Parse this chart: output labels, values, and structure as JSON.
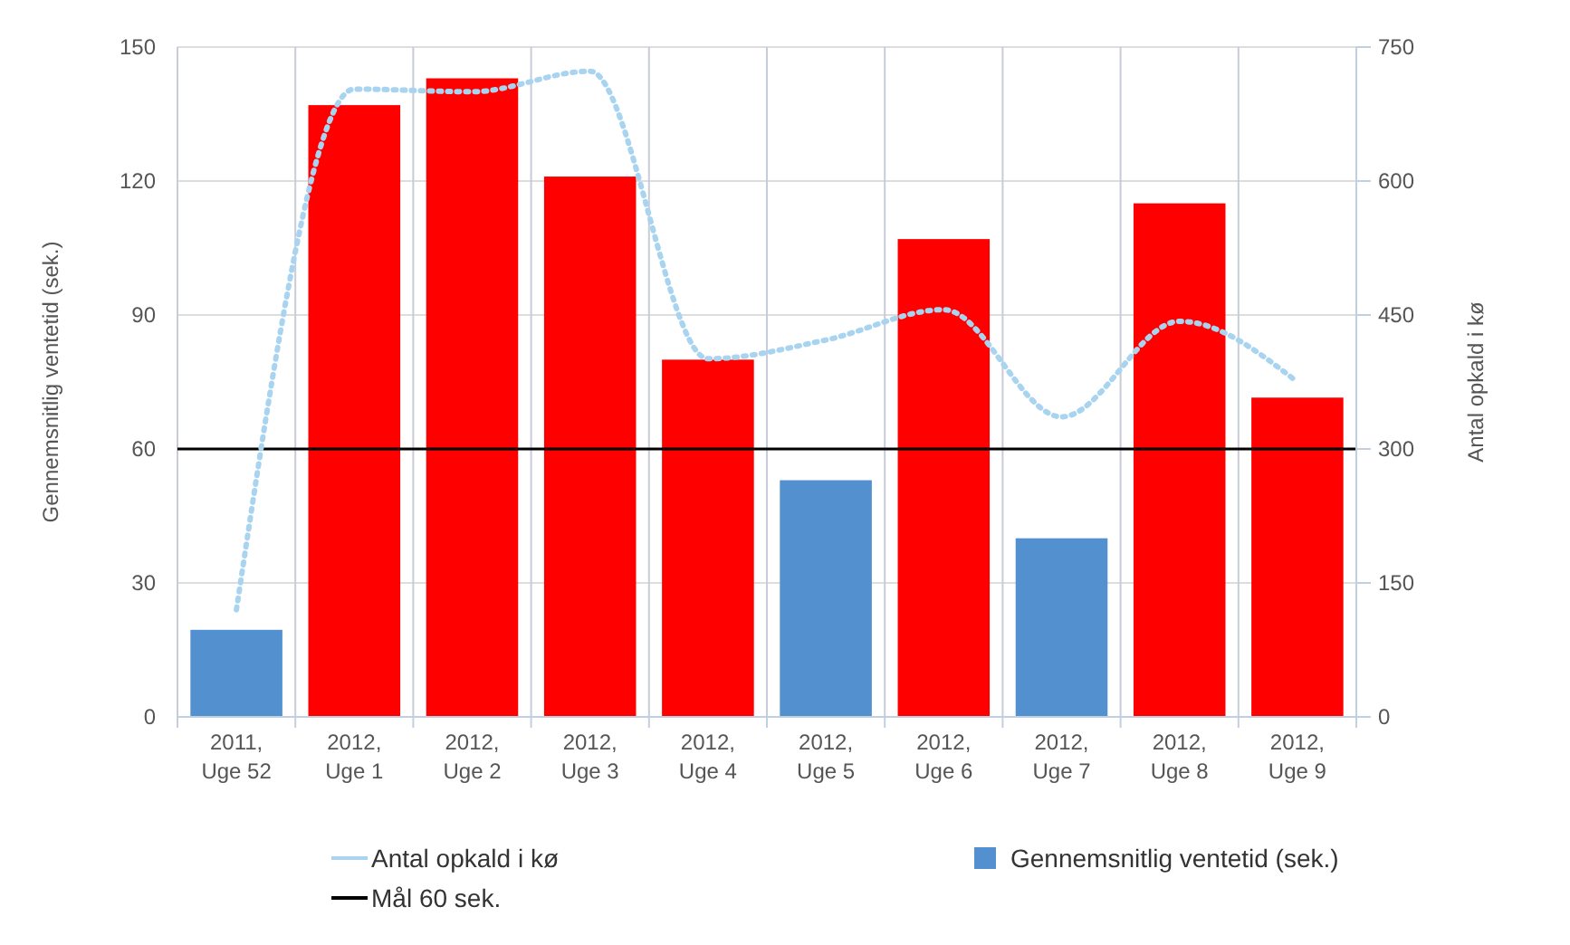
{
  "chart_data": {
    "type": "bar",
    "ylabel": "Gennemsnitlig ventetid (sek.)",
    "y2label": "Antal opkald i kø",
    "categories": [
      "2011, Uge 52",
      "2012, Uge 1",
      "2012, Uge 2",
      "2012, Uge 3",
      "2012, Uge 4",
      "2012, Uge 5",
      "2012, Uge 6",
      "2012, Uge 7",
      "2012, Uge 8",
      "2012, Uge 9"
    ],
    "series": [
      {
        "name": "Gennemsnitlig ventetid (sek.)",
        "color": "#5290d0",
        "colors": [
          "#5290d0",
          "#ff0000",
          "#ff0000",
          "#ff0000",
          "#ff0000",
          "#5290d0",
          "#ff0000",
          "#5290d0",
          "#ff0000",
          "#ff0000"
        ],
        "values": [
          19.5,
          137,
          143,
          121,
          80,
          53,
          107,
          40,
          115,
          71.5
        ]
      },
      {
        "name": "Antal opkald i kø",
        "type": "line",
        "axis": "y2",
        "color": "#a8d4f0",
        "line_style": "dotted",
        "values": [
          120,
          703,
          700,
          723,
          401,
          422,
          456,
          336,
          443,
          375
        ]
      }
    ],
    "ylim": [
      0,
      150
    ],
    "yticks": [
      0,
      30,
      60,
      90,
      120,
      150
    ],
    "y2lim": [
      0,
      750
    ],
    "y2ticks": [
      0,
      150,
      300,
      450,
      600,
      750
    ],
    "ref_lines": [
      {
        "axis": "y",
        "value": 60,
        "label": "Mål 60 sek.",
        "color": "#000000"
      }
    ],
    "grid": true,
    "legend": "bottom"
  }
}
